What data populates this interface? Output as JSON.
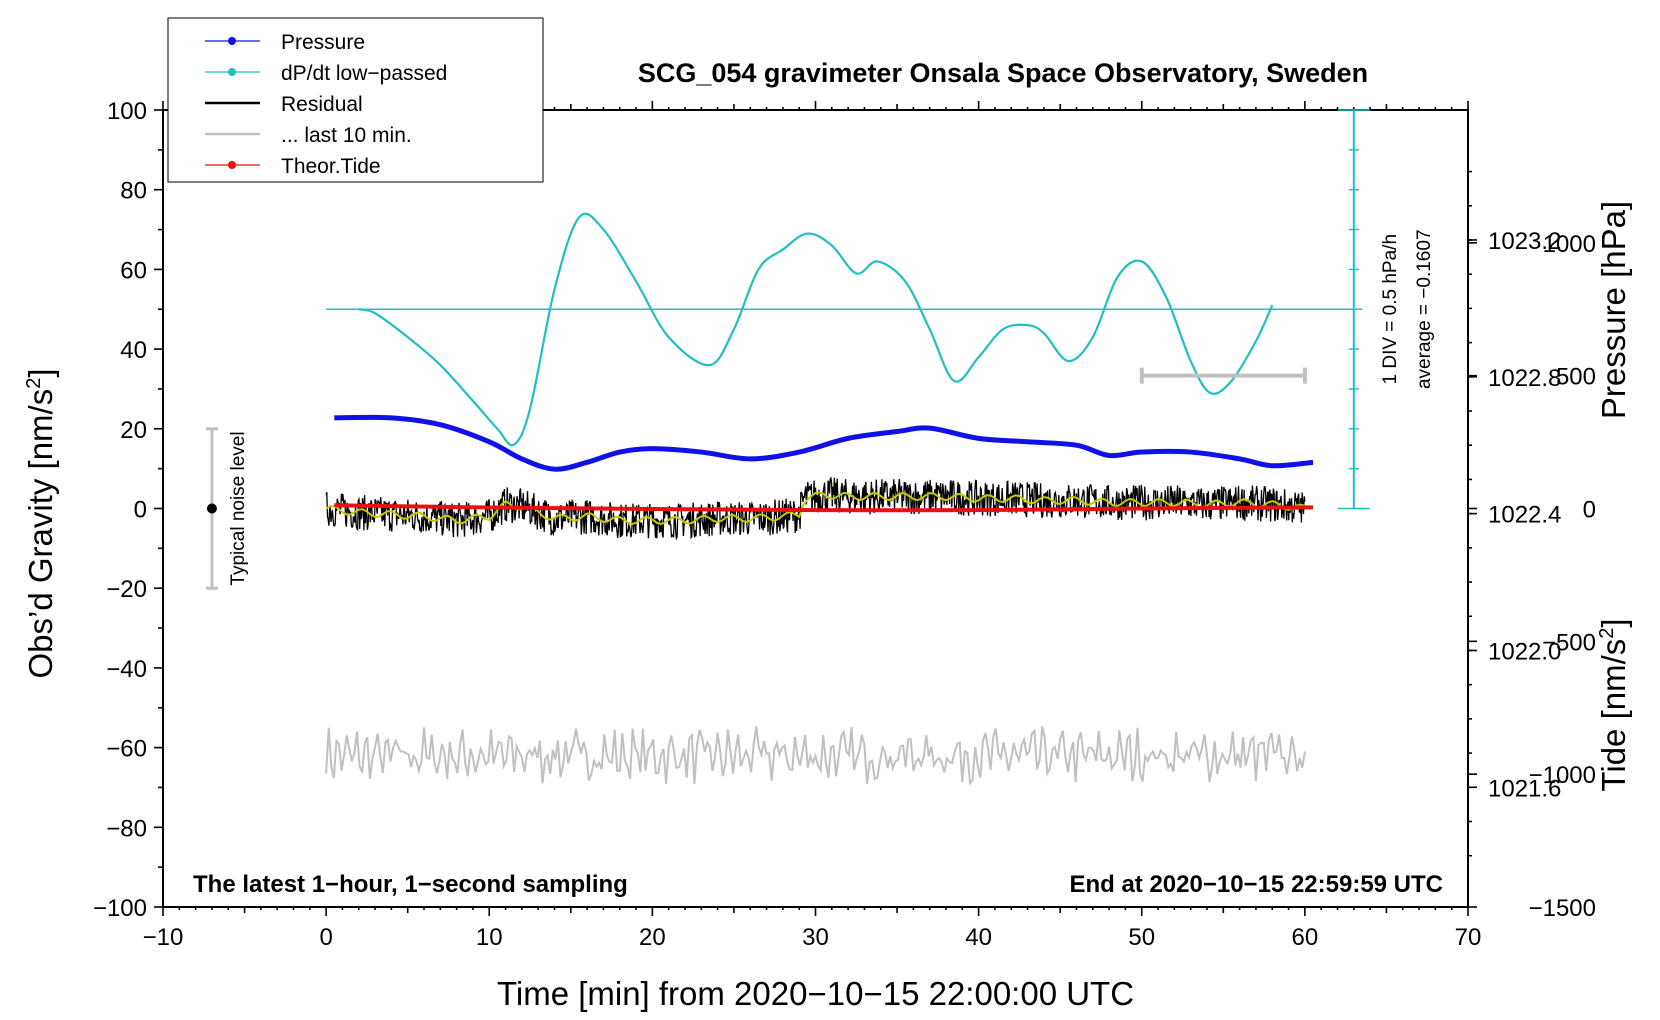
{
  "chart_data": {
    "type": "line",
    "title": "SCG_054 gravimeter Onsala Space Observatory, Sweden",
    "xlabel": "Time [min] from 2020−10−15 22:00:00 UTC",
    "ylabel_left": "Obs’d Gravity [nm/s",
    "ylabel_left_sup": "2",
    "ylabel_left_close": "]",
    "ylabel_right_pressure": "Pressure [hPa]",
    "ylabel_right_tide": "Tide [nm/s",
    "ylabel_right_tide_sup": "2",
    "ylabel_right_tide_close": "]",
    "xlim": [
      -10,
      70
    ],
    "ylim": [
      -100,
      100
    ],
    "pressure_lim": [
      1021.25,
      1023.58
    ],
    "tide_lim": [
      -1500,
      1500
    ],
    "x_ticks": [
      {
        "v": -10,
        "label": "−10"
      },
      {
        "v": 0,
        "label": "0"
      },
      {
        "v": 10,
        "label": "10"
      },
      {
        "v": 20,
        "label": "20"
      },
      {
        "v": 30,
        "label": "30"
      },
      {
        "v": 40,
        "label": "40"
      },
      {
        "v": 50,
        "label": "50"
      },
      {
        "v": 60,
        "label": "60"
      },
      {
        "v": 70,
        "label": "70"
      }
    ],
    "y_ticks": [
      {
        "v": 100,
        "label": "100"
      },
      {
        "v": 80,
        "label": "80"
      },
      {
        "v": 60,
        "label": "60"
      },
      {
        "v": 40,
        "label": "40"
      },
      {
        "v": 20,
        "label": "20"
      },
      {
        "v": 0,
        "label": "0"
      },
      {
        "v": -20,
        "label": "−20"
      },
      {
        "v": -40,
        "label": "−40"
      },
      {
        "v": -60,
        "label": "−60"
      },
      {
        "v": -80,
        "label": "−80"
      },
      {
        "v": -100,
        "label": "−100"
      }
    ],
    "pressure_ticks": [
      {
        "v": 1023.2,
        "label": "1023.2"
      },
      {
        "v": 1022.8,
        "label": "1022.8"
      },
      {
        "v": 1022.4,
        "label": "1022.4"
      },
      {
        "v": 1022.0,
        "label": "1022.0"
      },
      {
        "v": 1021.6,
        "label": "1021.6"
      }
    ],
    "tide_ticks": [
      {
        "v": 1000,
        "label": "1000"
      },
      {
        "v": 500,
        "label": "500"
      },
      {
        "v": 0,
        "label": "0"
      },
      {
        "v": -500,
        "label": "−500"
      },
      {
        "v": -1000,
        "label": "−1000"
      },
      {
        "v": -1500,
        "label": "−1500"
      }
    ],
    "legend": [
      {
        "label": "Pressure",
        "color": "#1010e8",
        "marker": true
      },
      {
        "label": "dP/dt low−passed",
        "color": "#20c0c0",
        "marker": true
      },
      {
        "label": "Residual",
        "color": "#000000",
        "marker": false
      },
      {
        "label": "... last 10 min.",
        "color": "#c0c0c0",
        "marker": false
      },
      {
        "label": "Theor.Tide",
        "color": "#e81010",
        "marker": true
      }
    ],
    "series": [
      {
        "name": "Pressure",
        "axis": "pressure",
        "color": "#1010e8",
        "x": [
          0.5,
          4,
          7,
          10,
          12,
          14,
          16,
          18,
          20,
          23,
          26,
          29,
          32,
          35,
          37,
          40,
          43,
          46,
          48,
          50,
          53,
          56,
          58,
          60.5
        ],
        "y": [
          1022.68,
          1022.68,
          1022.66,
          1022.61,
          1022.56,
          1022.53,
          1022.55,
          1022.58,
          1022.59,
          1022.58,
          1022.56,
          1022.58,
          1022.62,
          1022.64,
          1022.65,
          1022.62,
          1022.61,
          1022.6,
          1022.57,
          1022.58,
          1022.58,
          1022.56,
          1022.54,
          1022.55
        ]
      },
      {
        "name": "dP/dt low−passed",
        "axis": "left",
        "color": "#20c0c0",
        "x": [
          2,
          3,
          5,
          7,
          9,
          10.5,
          11.5,
          12.5,
          14,
          15.5,
          17,
          19,
          21,
          23.5,
          25,
          26.5,
          28,
          29.5,
          31,
          32.5,
          33.8,
          35.5,
          37,
          38.5,
          40,
          41.5,
          43,
          44,
          45.5,
          47,
          48.5,
          50,
          51.5,
          53,
          54.2,
          55.5,
          57,
          58
        ],
        "y": [
          50,
          49,
          43,
          36,
          27,
          20,
          16,
          25,
          55,
          73,
          70,
          57,
          43,
          36,
          45,
          60,
          65,
          69,
          66,
          59,
          62,
          57,
          45,
          32,
          38,
          45,
          46,
          44,
          37,
          43,
          58,
          62,
          53,
          37,
          29,
          32,
          42,
          51
        ]
      },
      {
        "name": "Residual",
        "axis": "left",
        "color": "#000000",
        "x": [
          0,
          2,
          4,
          6,
          8,
          10,
          11,
          12,
          14,
          16,
          18,
          20,
          22,
          24,
          26,
          28,
          29,
          29.3,
          30.5,
          32,
          34,
          36,
          38,
          40,
          42,
          44,
          46,
          48,
          50,
          52,
          54,
          56,
          58,
          60
        ],
        "y": [
          0,
          -1,
          -1.5,
          -2,
          -3,
          -2,
          1,
          0.5,
          -2.5,
          -2,
          -3,
          -3,
          -3,
          -2.5,
          -2.5,
          -2,
          -1.5,
          2.5,
          3.5,
          3,
          3,
          3,
          3,
          2.5,
          2.5,
          2,
          2,
          1.5,
          1.5,
          1.5,
          1,
          1.5,
          1,
          0
        ]
      },
      {
        "name": "Theor.Tide",
        "axis": "tide",
        "color": "#e81010",
        "x": [
          0.5,
          10,
          20,
          30,
          40,
          50,
          60.5
        ],
        "y": [
          12,
          4,
          -2,
          -6,
          -6,
          0,
          4
        ]
      },
      {
        "name": "... last 10 min.",
        "axis": "left",
        "color": "#c0c0c0",
        "x_range": [
          0,
          60
        ],
        "baseline": -62
      }
    ],
    "annotations": {
      "note_left": "The latest 1−hour, 1−second sampling",
      "note_right": "End at 2020−10−15 22:59:59 UTC",
      "noise_label": "Typical noise level",
      "noise_center": 0,
      "noise_range": [
        -20,
        20
      ],
      "scale_label": "1 DIV = 0.5 hPa/h",
      "average_label": "average = −0.1607",
      "avg_line_value": 50,
      "scale_bar_range": [
        50,
        60
      ],
      "scale_bar_value": 500
    }
  }
}
